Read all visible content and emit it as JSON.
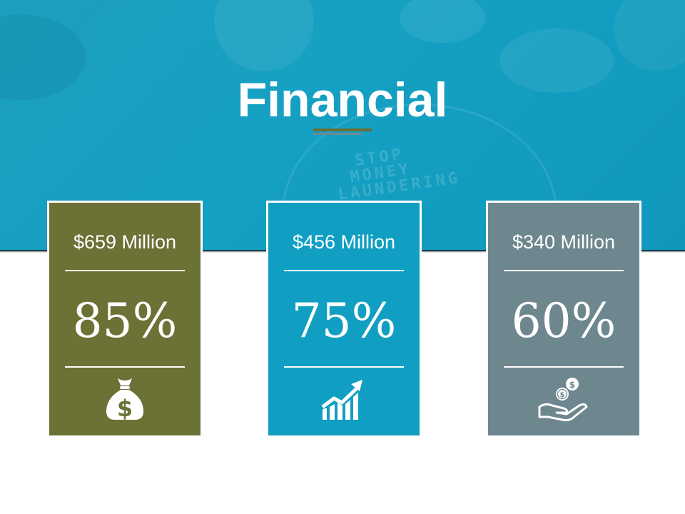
{
  "slide": {
    "title": "Financial",
    "banner_text": [
      "STOP",
      "MONEY",
      "LAUNDERING"
    ],
    "accent_colors": {
      "banner": "#15a0c3",
      "olive": "#6c7135",
      "teal": "#109fc2",
      "slate": "#6e878e"
    }
  },
  "cards": [
    {
      "amount": "$659 Million",
      "percent": "85%",
      "icon": "money-bag-icon",
      "color": "#6c7135"
    },
    {
      "amount": "$456 Million",
      "percent": "75%",
      "icon": "growth-chart-icon",
      "color": "#109fc2"
    },
    {
      "amount": "$340 Million",
      "percent": "60%",
      "icon": "hand-coins-icon",
      "color": "#6e878e"
    }
  ]
}
